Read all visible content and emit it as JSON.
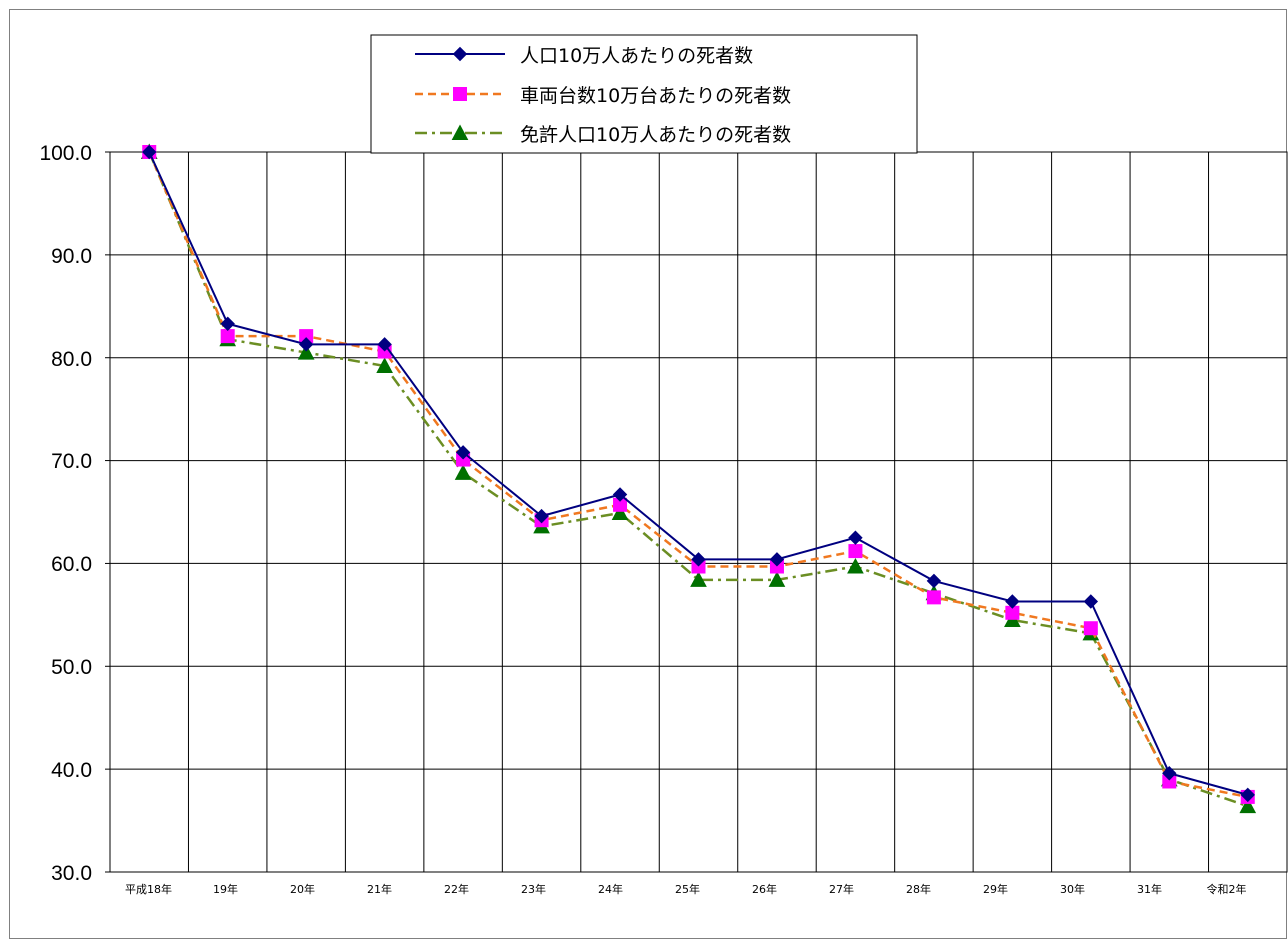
{
  "chart_data": {
    "type": "line",
    "title": "",
    "xlabel": "",
    "ylabel": "",
    "categories": [
      "平成18年",
      "19年",
      "20年",
      "21年",
      "22年",
      "23年",
      "24年",
      "25年",
      "26年",
      "27年",
      "28年",
      "29年",
      "30年",
      "31年",
      "令和2年"
    ],
    "ylim": [
      30,
      100
    ],
    "yticks": [
      "100.0",
      "90.0",
      "80.0",
      "70.0",
      "60.0",
      "50.0",
      "40.0",
      "30.0"
    ],
    "grid": true,
    "legend_position": "top-center",
    "series": [
      {
        "name": "人口10万人あたりの死者数",
        "color": "#000080",
        "line_style": "solid",
        "marker": "diamond",
        "values": [
          100.0,
          83.3,
          81.3,
          81.3,
          70.8,
          64.6,
          66.7,
          60.4,
          60.4,
          62.5,
          58.3,
          56.3,
          56.3,
          39.6,
          37.5
        ]
      },
      {
        "name": "車両台数10万台あたりの死者数",
        "color": "#F07820",
        "marker_color": "#FF00FF",
        "line_style": "dashed",
        "marker": "square",
        "values": [
          100.0,
          82.1,
          82.1,
          80.6,
          70.1,
          64.2,
          65.7,
          59.7,
          59.7,
          61.2,
          56.7,
          55.2,
          53.7,
          38.8,
          37.3
        ]
      },
      {
        "name": "免許人口10万人あたりの死者数",
        "color": "#6B8E23",
        "marker_color": "#007000",
        "line_style": "dashdot",
        "marker": "triangle",
        "values": [
          100.0,
          81.8,
          80.5,
          79.2,
          68.8,
          63.6,
          64.9,
          58.4,
          58.4,
          59.7,
          57.1,
          54.5,
          53.2,
          39.0,
          36.4
        ]
      }
    ]
  }
}
